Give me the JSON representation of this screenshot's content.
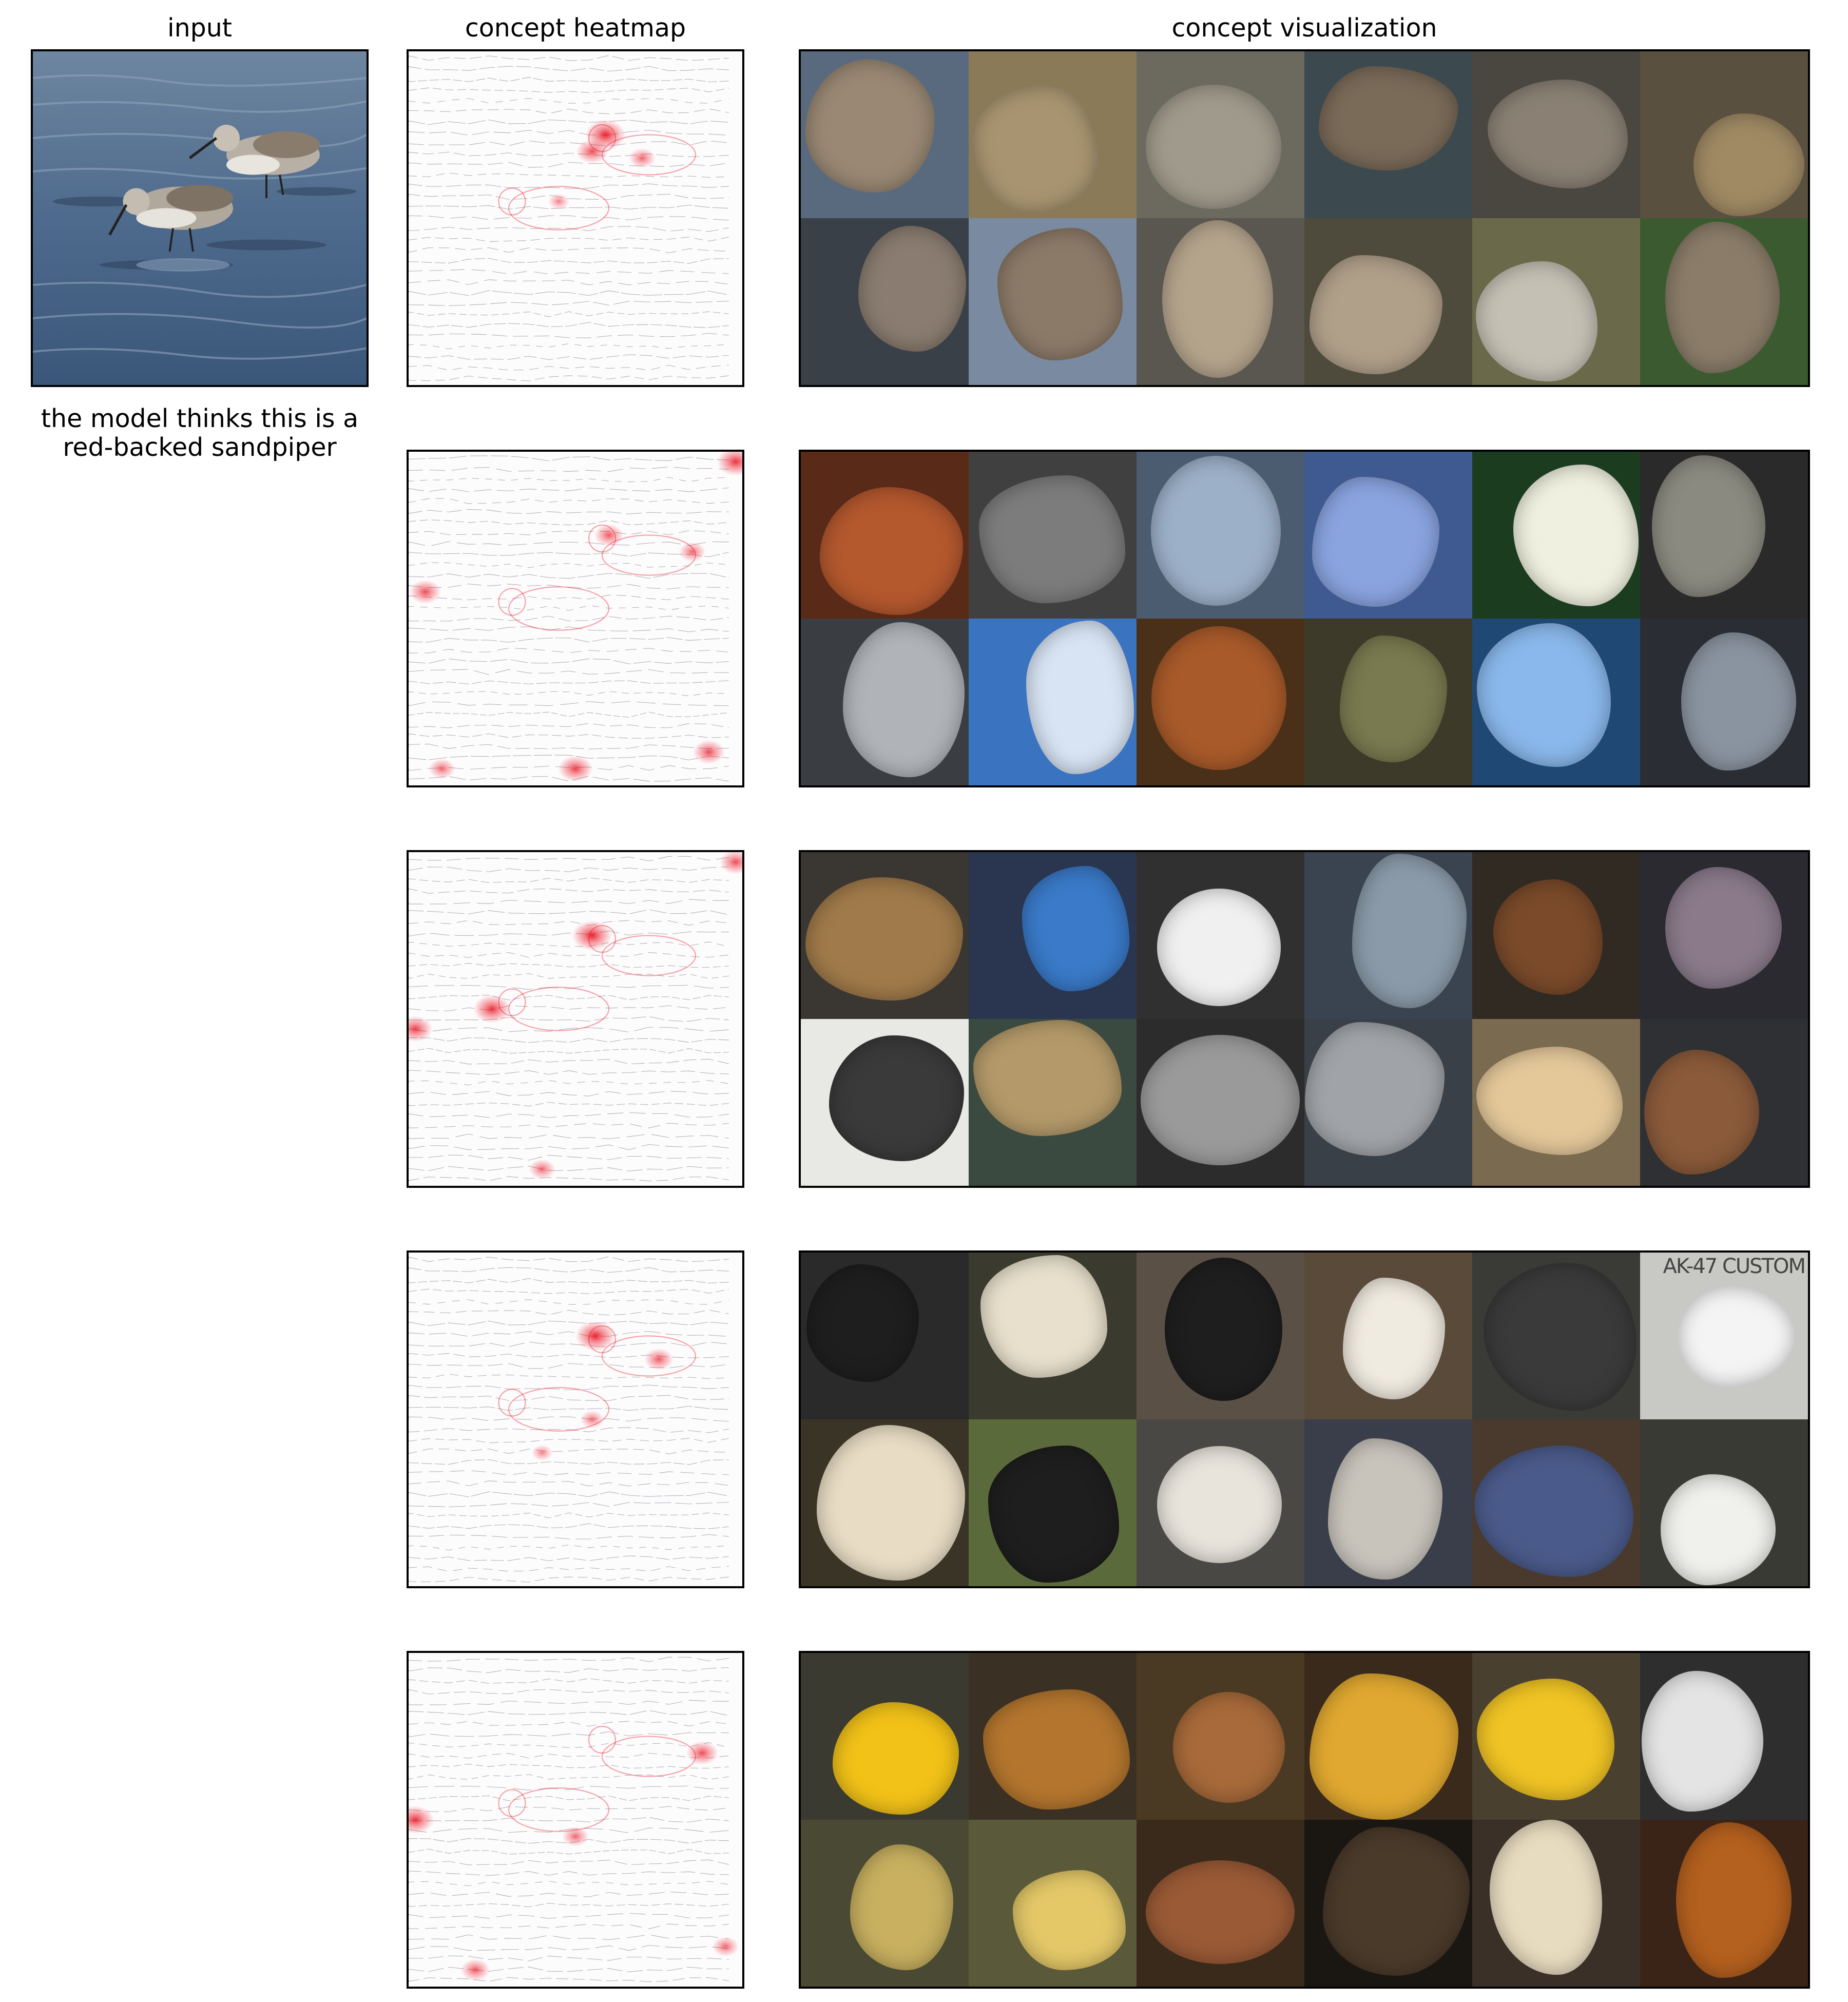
{
  "columns": {
    "input": "input",
    "heatmap": "concept heatmap",
    "visualization": "concept visualization"
  },
  "prediction_caption": {
    "line1": "the model thinks this is a",
    "line2": "red-backed sandpiper"
  },
  "heatmap_color": "#e8000f",
  "concepts": [
    {
      "id": "concept-1",
      "hotspots": [
        [
          0.59,
          0.25,
          1.0
        ],
        [
          0.55,
          0.3,
          0.7
        ],
        [
          0.7,
          0.32,
          0.5
        ],
        [
          0.45,
          0.45,
          0.3
        ]
      ],
      "tiles": [
        "#5a6a7e",
        "#8a7a58",
        "#6c6a5e",
        "#3c4a50",
        "#4a4640",
        "#5a5040",
        "#3a4048",
        "#7a8aa0",
        "#5a5650",
        "#4e4a3c",
        "#6a6a4a",
        "#3c5a30"
      ],
      "tile_fg": [
        "#9a8874",
        "#a89470",
        "#a09a8c",
        "#7a6a58",
        "#8a8074",
        "#a08a64",
        "#8a7c70",
        "#8c7a68",
        "#b4a48c",
        "#b0a08a",
        "#c4c0b4",
        "#8a7c68"
      ],
      "tile_text": []
    },
    {
      "id": "concept-2",
      "hotspots": [
        [
          0.98,
          0.03,
          0.9
        ],
        [
          0.6,
          0.25,
          0.6
        ],
        [
          0.05,
          0.42,
          0.7
        ],
        [
          0.5,
          0.95,
          0.8
        ],
        [
          0.9,
          0.9,
          0.7
        ],
        [
          0.1,
          0.95,
          0.5
        ],
        [
          0.85,
          0.3,
          0.5
        ]
      ],
      "tiles": [
        "#5a2a18",
        "#404040",
        "#4c5c70",
        "#3e5a90",
        "#1c3c20",
        "#2a2a2a",
        "#3a3e42",
        "#3a74c0",
        "#4a3018",
        "#3e3a2a",
        "#204874",
        "#2a2e34"
      ],
      "tile_fg": [
        "#b4582e",
        "#7c7c7c",
        "#9cb0c8",
        "#8aa4e0",
        "#f0f0e0",
        "#8a8a80",
        "#b0b4b8",
        "#d8e4f4",
        "#a85a2a",
        "#7a7a50",
        "#8ab8ec",
        "#8a94a0"
      ],
      "tile_text": []
    },
    {
      "id": "concept-3",
      "hotspots": [
        [
          0.55,
          0.25,
          1.0
        ],
        [
          0.25,
          0.47,
          0.9
        ],
        [
          0.02,
          0.53,
          0.8
        ],
        [
          0.98,
          0.03,
          0.7
        ],
        [
          0.4,
          0.95,
          0.5
        ]
      ],
      "tiles": [
        "#3a3632",
        "#2a3650",
        "#303030",
        "#3a4450",
        "#302a22",
        "#2a2a30",
        "#e8e8e4",
        "#3a4a40",
        "#2c2c2c",
        "#3a4048",
        "#7a6a50",
        "#2e3034"
      ],
      "tile_fg": [
        "#a07a4a",
        "#3a7ac8",
        "#f0f0f0",
        "#8a9aa8",
        "#7a4a2a",
        "#8a7a8a",
        "#3a3a3a",
        "#b49a6a",
        "#9a9a9a",
        "#a0a4a8",
        "#e4c89a",
        "#8a5a3a"
      ],
      "tile_text": []
    },
    {
      "id": "concept-4",
      "hotspots": [
        [
          0.56,
          0.25,
          1.0
        ],
        [
          0.75,
          0.32,
          0.6
        ],
        [
          0.55,
          0.5,
          0.4
        ],
        [
          0.4,
          0.6,
          0.3
        ]
      ],
      "tiles": [
        "#2a2a2a",
        "#3a3a2e",
        "#5a5046",
        "#5a4a3a",
        "#3a3a36",
        "#c8c8c4",
        "#3a3426",
        "#5a6a3a",
        "#4a4844",
        "#3a3e4a",
        "#4a3a2e",
        "#3a3a34"
      ],
      "tile_fg": [
        "#1e1e1e",
        "#e8e0cc",
        "#1e1e1e",
        "#f0ebe0",
        "#3a3a3a",
        "#f4f4f4",
        "#e8dcc4",
        "#1e1e1e",
        "#e8e4dc",
        "#c8c4bc",
        "#4a5a8a",
        "#f0f0ec"
      ],
      "tile_text": [
        "",
        "",
        "",
        "",
        "",
        "AK-47 CUSTOM",
        "",
        "",
        "",
        "",
        "",
        ""
      ]
    },
    {
      "id": "concept-5",
      "hotspots": [
        [
          0.02,
          0.5,
          0.9
        ],
        [
          0.88,
          0.3,
          0.7
        ],
        [
          0.2,
          0.95,
          0.6
        ],
        [
          0.5,
          0.55,
          0.5
        ],
        [
          0.95,
          0.88,
          0.5
        ]
      ],
      "tiles": [
        "#3a3a30",
        "#3a3024",
        "#4a3a24",
        "#3a2a1c",
        "#4a4030",
        "#2e2e2e",
        "#4a4a34",
        "#5a5a3a",
        "#3a2a1c",
        "#1a1612",
        "#3a3028",
        "#3a2418"
      ],
      "tile_fg": [
        "#f2c218",
        "#b4762e",
        "#a86a3a",
        "#e0a830",
        "#f0c424",
        "#e4e4e4",
        "#c8b060",
        "#e4c868",
        "#9a5a36",
        "#4a3a2a",
        "#e8dcc0",
        "#b4601e"
      ],
      "tile_text": []
    }
  ]
}
